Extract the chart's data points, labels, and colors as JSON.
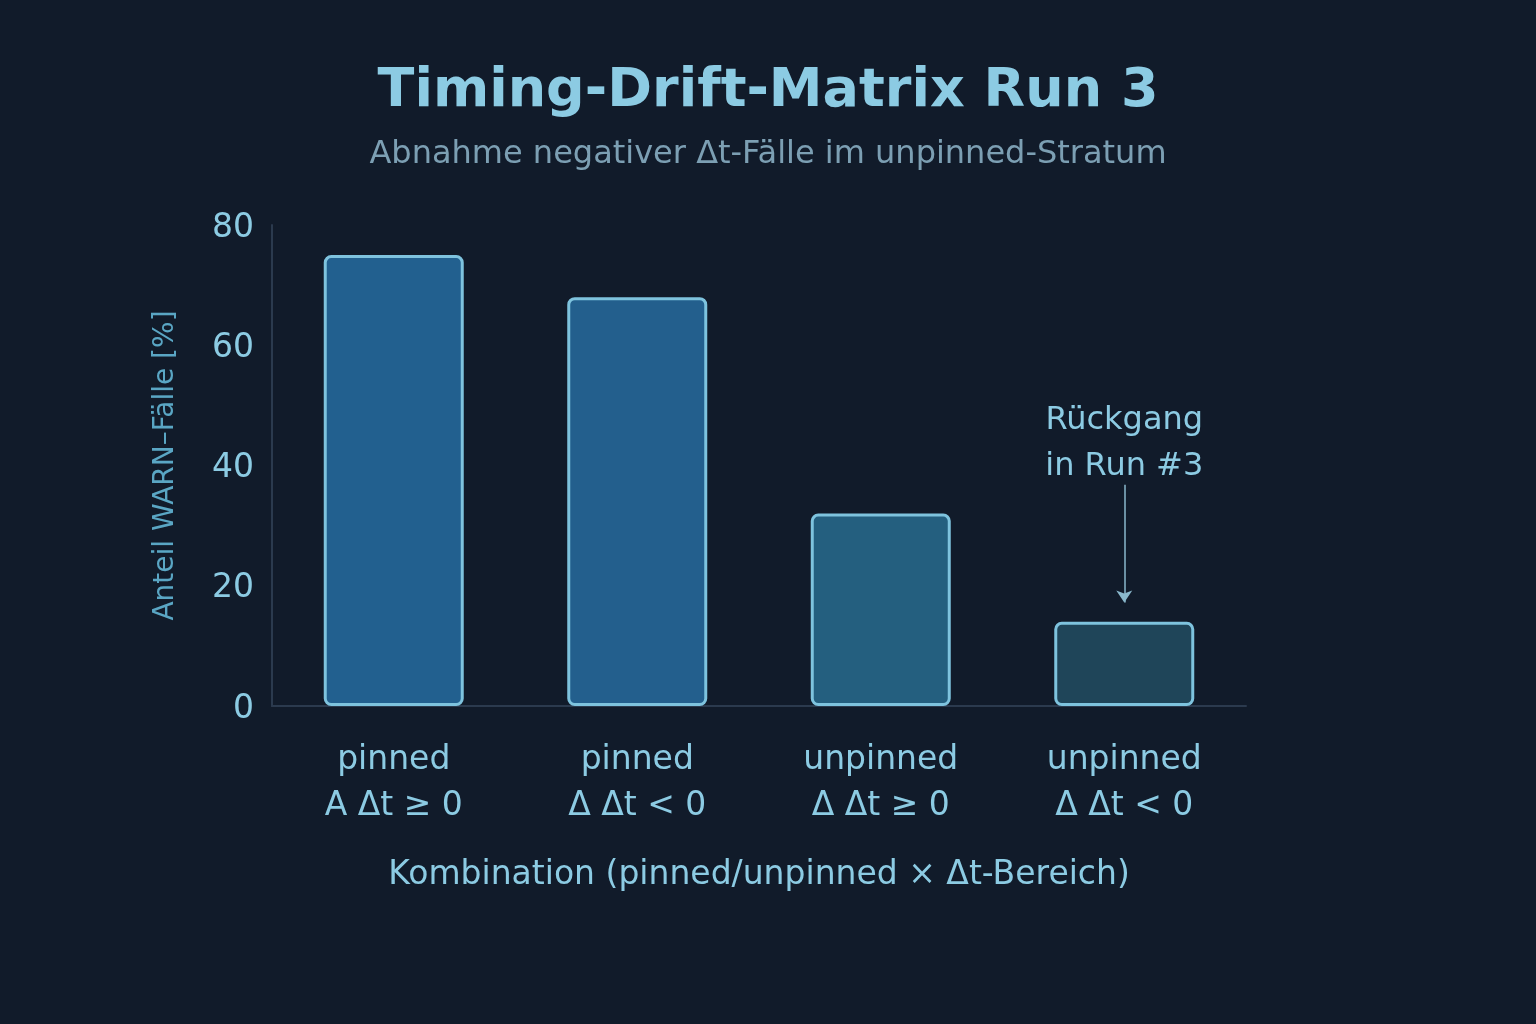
{
  "chart_data": {
    "type": "bar",
    "title": "Timing-Drift-Matrix Run 3",
    "subtitle": "Abnahme negativer Δt-Fälle im unpinned-Stratum",
    "xlabel": "Kombination (pinned/unpinned × Δt-Bereich)",
    "ylabel": "Anteil WARN–Fälle [%]",
    "categories": [
      "pinned\nA Δt ≥ 0",
      "pinned\nΔ Δt < 0",
      "unpinned\nΔ Δt ≥ 0",
      "unpinned\nΔ Δt < 0"
    ],
    "values": [
      75,
      68,
      32,
      14
    ],
    "colors": [
      "#22608f",
      "#235f8d",
      "#245f7f",
      "#1f4559"
    ],
    "ylim": [
      0,
      80
    ],
    "yticks": [
      0,
      20,
      40,
      60,
      80
    ],
    "annotations": [
      "Rückgang\nin Run #3"
    ]
  }
}
